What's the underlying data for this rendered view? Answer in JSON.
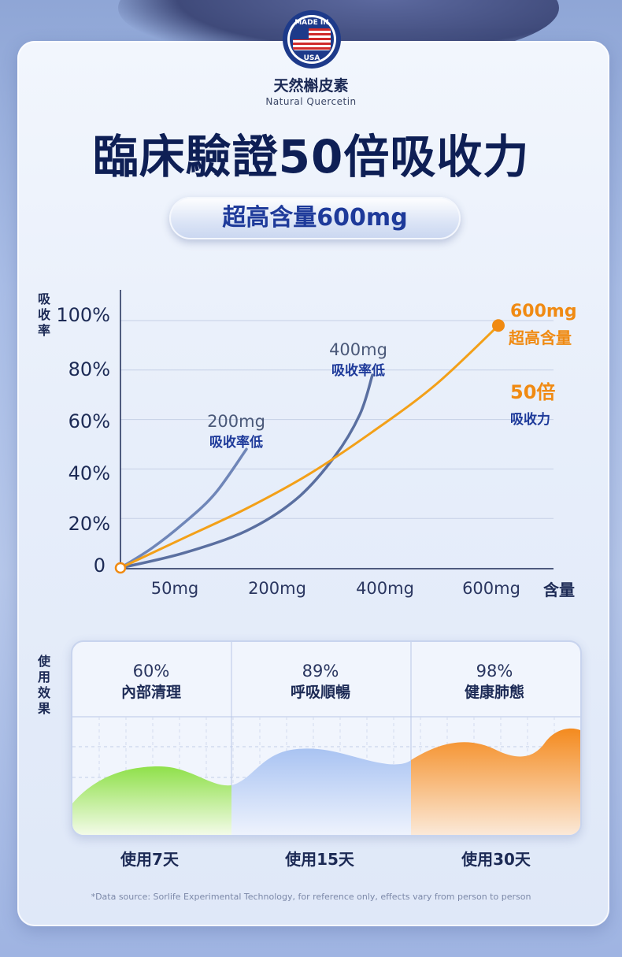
{
  "brand": {
    "badge_text_top": "MADE IN",
    "badge_text_bottom": "USA",
    "name_cn": "天然槲皮素",
    "name_en": "Natural Quercetin"
  },
  "headline": "臨床驗證50倍吸收力",
  "pill": "超高含量600mg",
  "chart_data": {
    "type": "line",
    "ylabel": "吸收率",
    "xlabel": "含量",
    "y_ticks": [
      "0",
      "20%",
      "40%",
      "60%",
      "80%",
      "100%"
    ],
    "x_ticks": [
      "50mg",
      "200mg",
      "400mg",
      "600mg"
    ],
    "ylim": [
      0,
      100
    ],
    "grid": true,
    "series": [
      {
        "name": "200mg 吸收率低",
        "color": "#6f86b8",
        "points": [
          [
            0,
            0
          ],
          [
            50,
            8
          ],
          [
            100,
            18
          ],
          [
            150,
            30
          ],
          [
            200,
            48
          ]
        ]
      },
      {
        "name": "400mg 吸收率低",
        "color": "#5a6fa0",
        "points": [
          [
            0,
            0
          ],
          [
            100,
            6
          ],
          [
            200,
            15
          ],
          [
            280,
            28
          ],
          [
            340,
            45
          ],
          [
            380,
            62
          ],
          [
            400,
            78
          ]
        ]
      },
      {
        "name": "600mg 超高含量",
        "color": "#f3a018",
        "points": [
          [
            0,
            0
          ],
          [
            100,
            12
          ],
          [
            200,
            24
          ],
          [
            300,
            38
          ],
          [
            400,
            55
          ],
          [
            500,
            74
          ],
          [
            600,
            98
          ]
        ]
      }
    ],
    "annotations": [
      {
        "line1": "200mg",
        "line2": "吸收率低"
      },
      {
        "line1": "400mg",
        "line2": "吸收率低"
      },
      {
        "line1": "600mg",
        "line2": "超高含量"
      },
      {
        "line1": "50倍",
        "line2": "吸收力"
      }
    ]
  },
  "effects": {
    "label": "使用效果",
    "columns": [
      {
        "percent": "60%",
        "name": "內部清理",
        "period": "使用7天",
        "value": 60
      },
      {
        "percent": "89%",
        "name": "呼吸順暢",
        "period": "使用15天",
        "value": 89
      },
      {
        "percent": "98%",
        "name": "健康肺態",
        "period": "使用30天",
        "value": 98
      }
    ]
  },
  "footnote": "*Data source: Sorlife Experimental Technology, for reference only, effects vary from person to person",
  "colors": {
    "navy": "#0e1f55",
    "accent_blue": "#1e3a9a",
    "orange": "#f08a12",
    "green": "#8fd94a"
  }
}
